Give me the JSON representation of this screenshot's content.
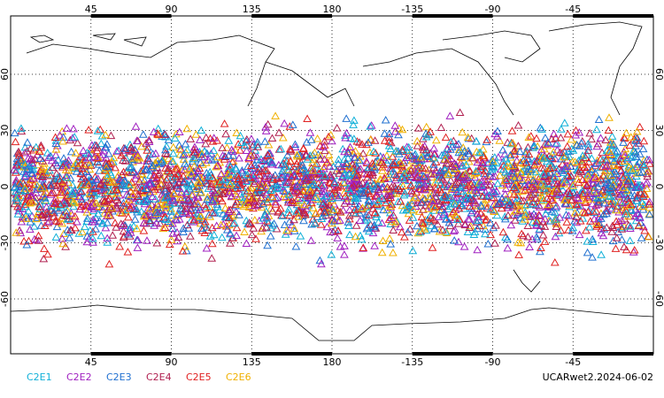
{
  "chart_data": {
    "type": "scatter",
    "title": "UCARwet2.2024-06-02",
    "xlim": [
      0,
      360
    ],
    "ylim": [
      -90,
      90
    ],
    "xticks": [
      45,
      90,
      135,
      180,
      {
        "value": 225,
        "label": "-135"
      },
      {
        "value": 270,
        "label": "-90"
      },
      {
        "value": 315,
        "label": "-45"
      }
    ],
    "yticks": [
      -60,
      -30,
      0,
      30,
      60
    ],
    "grid": true,
    "series": [
      {
        "name": "C2E1",
        "color": "#10b0d8"
      },
      {
        "name": "C2E2",
        "color": "#a020c0"
      },
      {
        "name": "C2E3",
        "color": "#2070d0"
      },
      {
        "name": "C2E4",
        "color": "#b02050"
      },
      {
        "name": "C2E5",
        "color": "#e02020"
      },
      {
        "name": "C2E6",
        "color": "#f0b000"
      }
    ]
  }
}
